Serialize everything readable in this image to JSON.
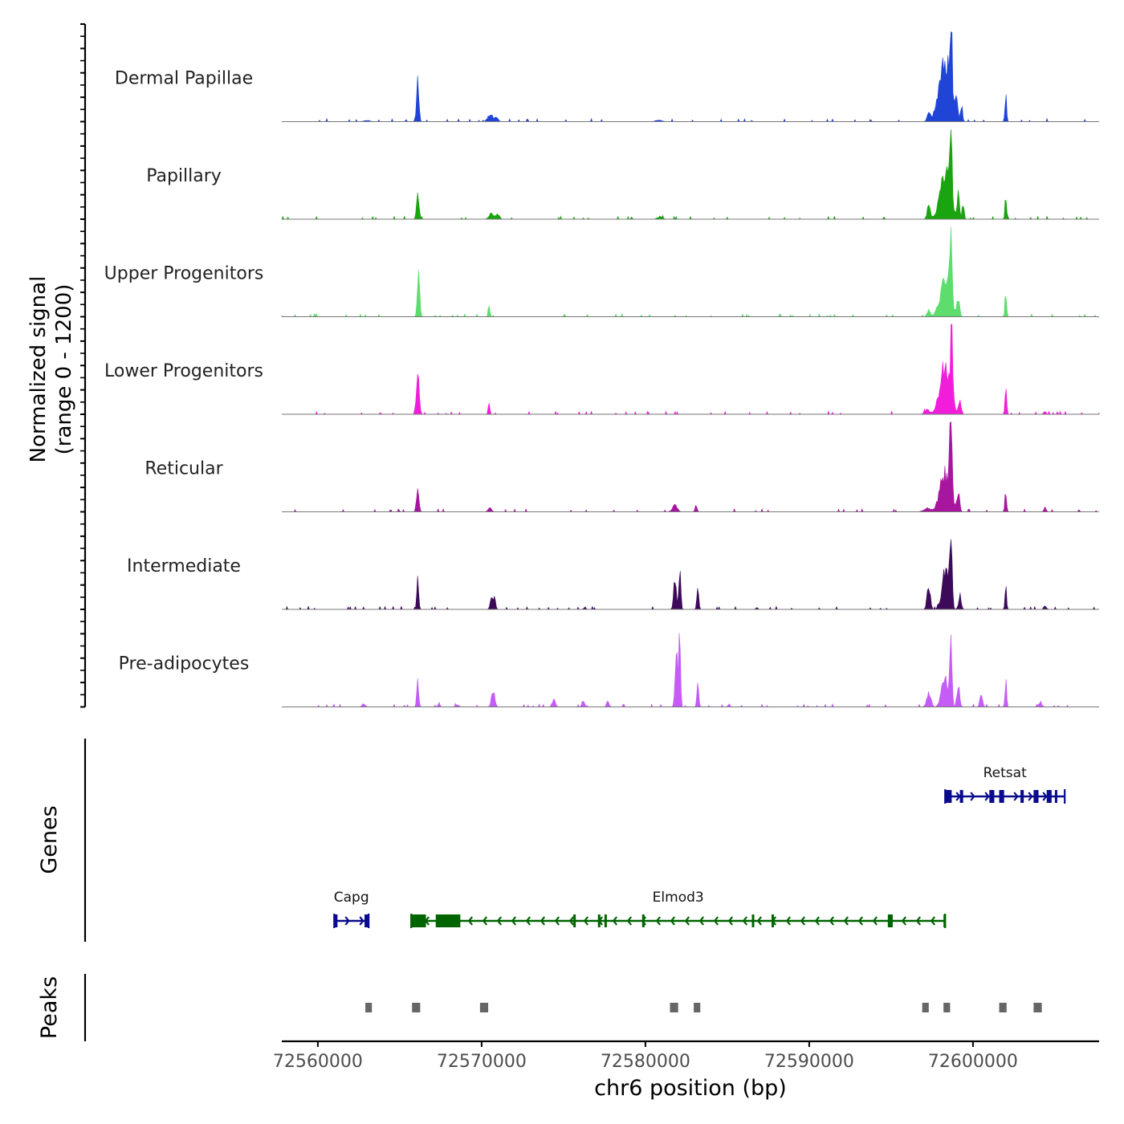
{
  "chart_data": {
    "type": "area",
    "title": "",
    "xlabel": "chr6 position (bp)",
    "ylabel_line1": "Normalized signal",
    "ylabel_line2": "(range 0 - 1200)",
    "y_range": [
      0,
      1200
    ],
    "x_range": [
      72557800,
      72607700
    ],
    "x_ticks": [
      72560000,
      72570000,
      72580000,
      72590000,
      72600000
    ],
    "x_tick_labels": [
      "72560000",
      "72570000",
      "72580000",
      "72590000",
      "72600000"
    ],
    "tracks": [
      {
        "name": "Dermal Papillae",
        "color": "#1f44d6",
        "peaks": [
          [
            72566100,
            560,
            70
          ],
          [
            72570500,
            80,
            150
          ],
          [
            72570900,
            60,
            100
          ],
          [
            72597300,
            90,
            100
          ],
          [
            72598300,
            750,
            350
          ],
          [
            72598650,
            1150,
            60
          ],
          [
            72599000,
            250,
            60
          ],
          [
            72599300,
            200,
            60
          ],
          [
            72602000,
            330,
            50
          ],
          [
            72580800,
            20,
            200
          ],
          [
            72563000,
            15,
            200
          ]
        ]
      },
      {
        "name": "Papillary",
        "color": "#1aa40f",
        "peaks": [
          [
            72566100,
            400,
            70
          ],
          [
            72570600,
            70,
            150
          ],
          [
            72571000,
            60,
            100
          ],
          [
            72597300,
            150,
            100
          ],
          [
            72598300,
            600,
            300
          ],
          [
            72598650,
            1180,
            60
          ],
          [
            72599100,
            300,
            70
          ],
          [
            72599400,
            180,
            60
          ],
          [
            72602000,
            280,
            50
          ],
          [
            72580900,
            40,
            150
          ]
        ]
      },
      {
        "name": "Upper Progenitors",
        "color": "#5ddd6e",
        "peaks": [
          [
            72566150,
            640,
            70
          ],
          [
            72570450,
            160,
            50
          ],
          [
            72597300,
            80,
            100
          ],
          [
            72598300,
            500,
            300
          ],
          [
            72598650,
            1200,
            60
          ],
          [
            72599100,
            260,
            80
          ],
          [
            72602000,
            340,
            50
          ]
        ]
      },
      {
        "name": "Lower Progenitors",
        "color": "#f21ddb",
        "peaks": [
          [
            72566100,
            620,
            80
          ],
          [
            72570450,
            130,
            50
          ],
          [
            72597200,
            60,
            150
          ],
          [
            72598300,
            650,
            300
          ],
          [
            72598700,
            1200,
            60
          ],
          [
            72599200,
            160,
            80
          ],
          [
            72602000,
            380,
            50
          ],
          [
            72604400,
            40,
            80
          ]
        ]
      },
      {
        "name": "Reticular",
        "color": "#a8169f",
        "peaks": [
          [
            72566100,
            380,
            70
          ],
          [
            72570500,
            60,
            100
          ],
          [
            72581800,
            90,
            150
          ],
          [
            72583100,
            100,
            60
          ],
          [
            72597200,
            50,
            200
          ],
          [
            72598300,
            500,
            300
          ],
          [
            72598650,
            900,
            70
          ],
          [
            72599100,
            250,
            80
          ],
          [
            72602000,
            300,
            50
          ],
          [
            72604400,
            60,
            70
          ]
        ]
      },
      {
        "name": "Intermediate",
        "color": "#3d0a59",
        "peaks": [
          [
            72566100,
            420,
            60
          ],
          [
            72570600,
            150,
            80
          ],
          [
            72570800,
            180,
            60
          ],
          [
            72576300,
            30,
            60
          ],
          [
            72581800,
            400,
            80
          ],
          [
            72582100,
            500,
            60
          ],
          [
            72583200,
            240,
            60
          ],
          [
            72586800,
            30,
            60
          ],
          [
            72597300,
            300,
            100
          ],
          [
            72598300,
            500,
            200
          ],
          [
            72598650,
            1000,
            70
          ],
          [
            72599200,
            200,
            80
          ],
          [
            72602000,
            280,
            50
          ],
          [
            72604400,
            50,
            80
          ]
        ]
      },
      {
        "name": "Pre-adipocytes",
        "color": "#c45cf5",
        "peaks": [
          [
            72566100,
            310,
            60
          ],
          [
            72567400,
            60,
            60
          ],
          [
            72570700,
            200,
            100
          ],
          [
            72574400,
            90,
            100
          ],
          [
            72576200,
            80,
            80
          ],
          [
            72577700,
            70,
            80
          ],
          [
            72581900,
            650,
            80
          ],
          [
            72582100,
            960,
            50
          ],
          [
            72583200,
            300,
            60
          ],
          [
            72585100,
            40,
            60
          ],
          [
            72597300,
            200,
            120
          ],
          [
            72598300,
            400,
            200
          ],
          [
            72598650,
            1150,
            60
          ],
          [
            72599100,
            300,
            80
          ],
          [
            72600500,
            150,
            80
          ],
          [
            72602000,
            360,
            50
          ],
          [
            72604100,
            60,
            100
          ],
          [
            72562800,
            40,
            100
          ],
          [
            72568500,
            30,
            100
          ]
        ]
      }
    ],
    "genes": [
      {
        "name": "Capg",
        "start": 72561000,
        "end": 72563100,
        "strand": "+",
        "row": 2,
        "color": "#0a0a8c",
        "exons": [
          [
            72561000,
            72561200
          ],
          [
            72562850,
            72563100
          ]
        ]
      },
      {
        "name": "Elmod3",
        "start": 72565700,
        "end": 72598300,
        "strand": "-",
        "row": 2,
        "color": "#006400",
        "exons": [
          [
            72565700,
            72566600
          ],
          [
            72567200,
            72568700
          ],
          [
            72575600,
            72575700
          ],
          [
            72577100,
            72577200
          ],
          [
            72577500,
            72577600
          ],
          [
            72579800,
            72579900
          ],
          [
            72586500,
            72586600
          ],
          [
            72587700,
            72587800
          ],
          [
            72594800,
            72595100
          ],
          [
            72598200,
            72598300
          ]
        ]
      },
      {
        "name": "Retsat",
        "start": 72598300,
        "end": 72605600,
        "strand": "+",
        "row": 1,
        "color": "#0a0a8c",
        "exons": [
          [
            72598300,
            72598700
          ],
          [
            72599200,
            72599400
          ],
          [
            72601000,
            72601300
          ],
          [
            72601600,
            72601900
          ],
          [
            72602900,
            72603100
          ],
          [
            72603700,
            72604000
          ],
          [
            72604500,
            72604800
          ],
          [
            72605000,
            72605100
          ]
        ]
      }
    ],
    "panel_labels": {
      "genes": "Genes",
      "peaks": "Peaks"
    },
    "peak_regions": [
      [
        72562900,
        72563300
      ],
      [
        72565750,
        72566250
      ],
      [
        72569900,
        72570400
      ],
      [
        72581500,
        72582000
      ],
      [
        72582950,
        72583350
      ],
      [
        72596900,
        72597300
      ],
      [
        72598200,
        72598600
      ],
      [
        72601600,
        72602050
      ],
      [
        72603700,
        72604200
      ]
    ]
  }
}
